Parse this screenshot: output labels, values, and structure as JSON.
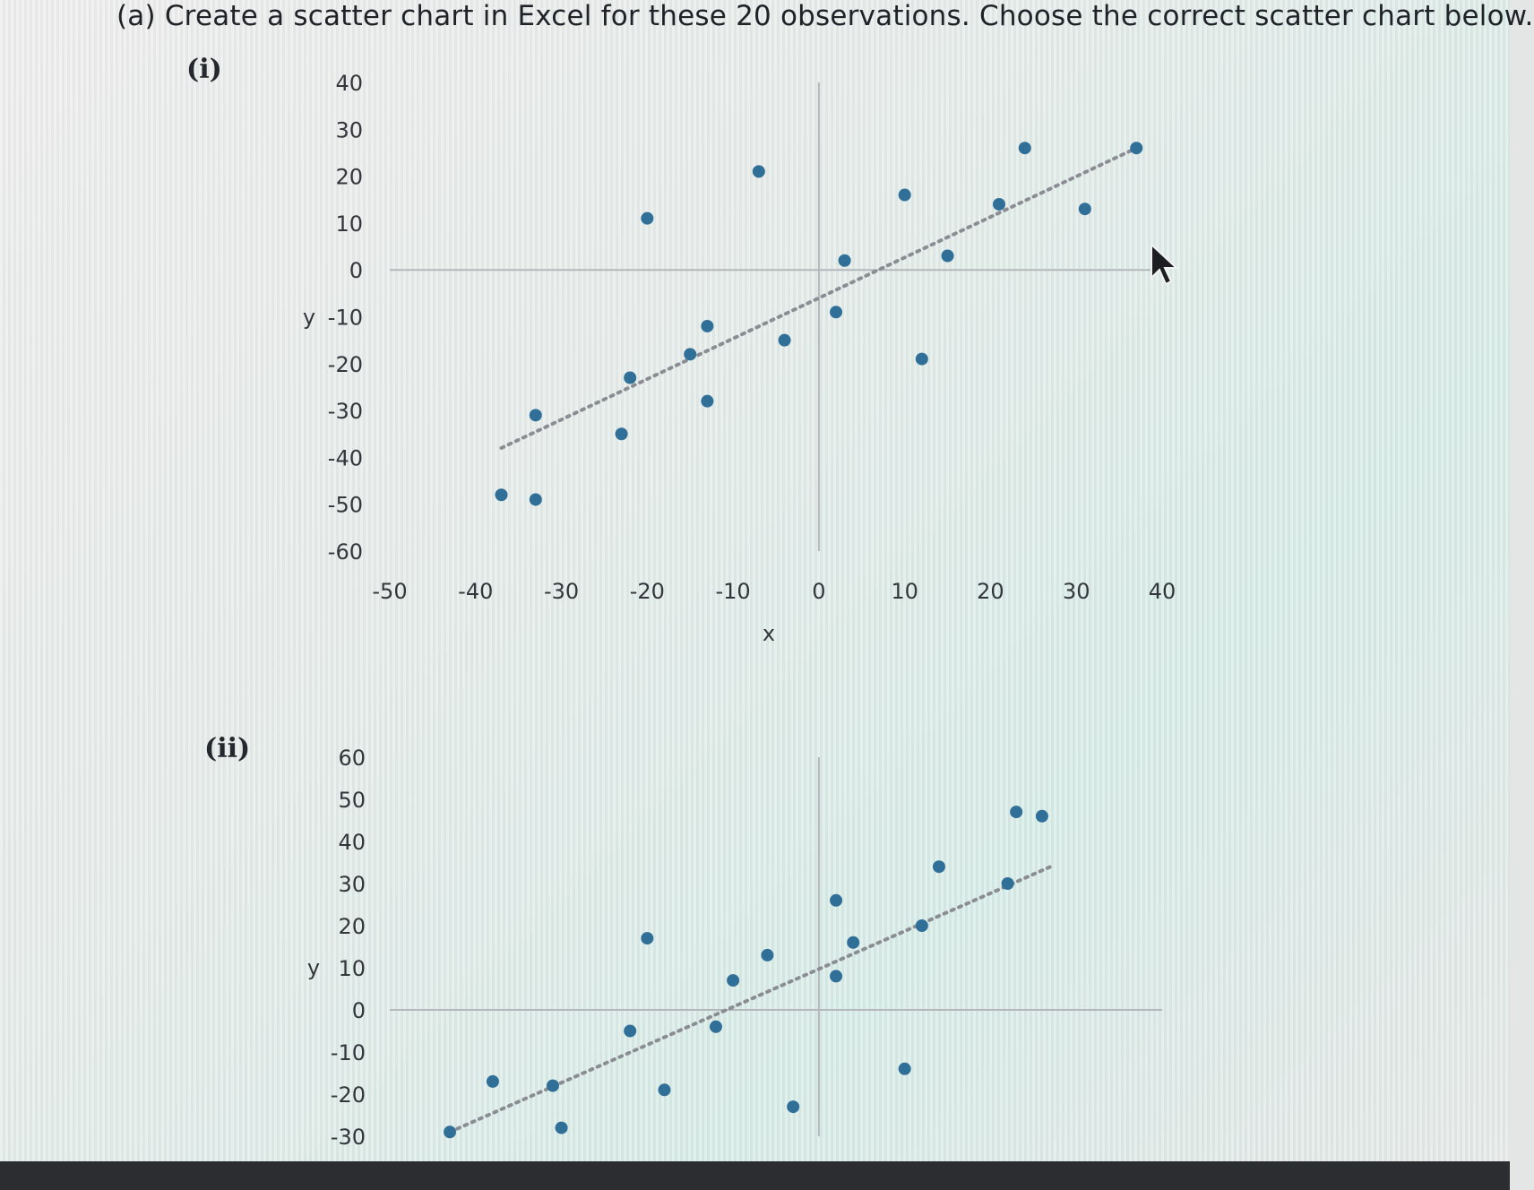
{
  "question": {
    "text": "(a) Create a scatter chart in Excel for these 20 observations. Choose the correct scatter chart below."
  },
  "colors": {
    "point": "#2f6f98",
    "trendline": "#8a8d92",
    "axis": "#b4b8bb"
  },
  "chart_data": [
    {
      "label": "(i)",
      "type": "scatter",
      "xlabel": "x",
      "ylabel": "y",
      "xlim": [
        -50,
        40
      ],
      "ylim": [
        -60,
        40
      ],
      "x_ticks": [
        "-50",
        "-40",
        "-30",
        "-20",
        "-10",
        "0",
        "10",
        "20",
        "30",
        "40"
      ],
      "y_ticks": [
        "40",
        "30",
        "20",
        "10",
        "0",
        "-10",
        "-20",
        "-30",
        "-40",
        "-50",
        "-60"
      ],
      "trendline": {
        "style": "dotted",
        "x": [
          -37,
          37
        ],
        "y": [
          -38,
          26
        ]
      },
      "points": [
        {
          "x": -37,
          "y": -48
        },
        {
          "x": -33,
          "y": -49
        },
        {
          "x": -33,
          "y": -31
        },
        {
          "x": -23,
          "y": -35
        },
        {
          "x": -22,
          "y": -23
        },
        {
          "x": -20,
          "y": 11
        },
        {
          "x": -15,
          "y": -18
        },
        {
          "x": -13,
          "y": -12
        },
        {
          "x": -13,
          "y": -28
        },
        {
          "x": -7,
          "y": 21
        },
        {
          "x": -4,
          "y": -15
        },
        {
          "x": 2,
          "y": -9
        },
        {
          "x": 3,
          "y": 2
        },
        {
          "x": 10,
          "y": 16
        },
        {
          "x": 12,
          "y": -19
        },
        {
          "x": 15,
          "y": 3
        },
        {
          "x": 21,
          "y": 14
        },
        {
          "x": 24,
          "y": 26
        },
        {
          "x": 31,
          "y": 13
        },
        {
          "x": 37,
          "y": 26
        }
      ]
    },
    {
      "label": "(ii)",
      "type": "scatter",
      "xlabel": "",
      "ylabel": "y",
      "xlim": [
        -50,
        40
      ],
      "ylim": [
        -30,
        60
      ],
      "x_ticks": [],
      "y_ticks": [
        "60",
        "50",
        "40",
        "30",
        "20",
        "10",
        "0",
        "-10",
        "-20",
        "-30"
      ],
      "trendline": {
        "style": "dotted",
        "x": [
          -43,
          27
        ],
        "y": [
          -29,
          34
        ]
      },
      "points": [
        {
          "x": -43,
          "y": -29
        },
        {
          "x": -38,
          "y": -17
        },
        {
          "x": -31,
          "y": -18
        },
        {
          "x": -30,
          "y": -28
        },
        {
          "x": -22,
          "y": -5
        },
        {
          "x": -20,
          "y": 17
        },
        {
          "x": -18,
          "y": -19
        },
        {
          "x": -12,
          "y": -4
        },
        {
          "x": -10,
          "y": 7
        },
        {
          "x": -6,
          "y": 13
        },
        {
          "x": -3,
          "y": -23
        },
        {
          "x": 2,
          "y": 8
        },
        {
          "x": 2,
          "y": 26
        },
        {
          "x": 4,
          "y": 16
        },
        {
          "x": 10,
          "y": -14
        },
        {
          "x": 12,
          "y": 20
        },
        {
          "x": 14,
          "y": 34
        },
        {
          "x": 22,
          "y": 30
        },
        {
          "x": 23,
          "y": 47
        },
        {
          "x": 26,
          "y": 46
        }
      ]
    }
  ]
}
